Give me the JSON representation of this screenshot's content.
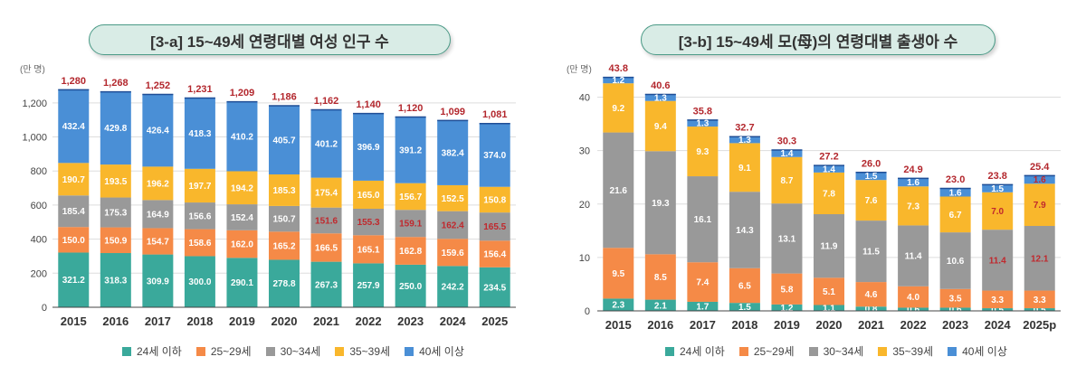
{
  "chart_data": [
    {
      "type": "bar",
      "title": "[3-a] 15~49세 연령대별 여성 인구 수",
      "ylabel": "(만 명)",
      "ylim": [
        0,
        1300
      ],
      "yticks": [
        "0",
        "200",
        "400",
        "600",
        "800",
        "1,000",
        "1,200"
      ],
      "categories": [
        "2015",
        "2016",
        "2017",
        "2018",
        "2019",
        "2020",
        "2021",
        "2022",
        "2023",
        "2024",
        "2025"
      ],
      "totals": [
        "1,280",
        "1,268",
        "1,252",
        "1,231",
        "1,209",
        "1,186",
        "1,162",
        "1,140",
        "1,120",
        "1,099",
        "1,081"
      ],
      "series": [
        {
          "name": "24세 이하",
          "color": "#3aa99b",
          "values": [
            321.2,
            318.3,
            309.9,
            300.0,
            290.1,
            278.8,
            267.3,
            257.9,
            250.0,
            242.2,
            234.5
          ],
          "labels": [
            "321.2",
            "318.3",
            "309.9",
            "300.0",
            "290.1",
            "278.8",
            "267.3",
            "257.9",
            "250.0",
            "242.2",
            "234.5"
          ]
        },
        {
          "name": "25~29세",
          "color": "#f58a47",
          "values": [
            150.0,
            150.9,
            154.7,
            158.6,
            162.0,
            165.2,
            166.5,
            165.1,
            162.8,
            159.6,
            156.4
          ],
          "labels": [
            "150.0",
            "150.9",
            "154.7",
            "158.6",
            "162.0",
            "165.2",
            "166.5",
            "165.1",
            "162.8",
            "159.6",
            "156.4"
          ]
        },
        {
          "name": "30~34세",
          "color": "#999999",
          "values": [
            185.4,
            175.3,
            164.9,
            156.6,
            152.4,
            150.7,
            151.6,
            155.3,
            159.1,
            162.4,
            165.5
          ],
          "labels": [
            "185.4",
            "175.3",
            "164.9",
            "156.6",
            "152.4",
            "150.7",
            "151.6",
            "155.3",
            "159.1",
            "162.4",
            "165.5"
          ],
          "red_from": 6
        },
        {
          "name": "35~39세",
          "color": "#f9b72c",
          "values": [
            190.7,
            193.5,
            196.2,
            197.7,
            194.2,
            185.3,
            175.4,
            165.0,
            156.7,
            152.5,
            150.8
          ],
          "labels": [
            "190.7",
            "193.5",
            "196.2",
            "197.7",
            "194.2",
            "185.3",
            "175.4",
            "165.0",
            "156.7",
            "152.5",
            "150.8"
          ]
        },
        {
          "name": "40세 이상",
          "color": "#4a8fd6",
          "values": [
            432.4,
            429.8,
            426.4,
            418.3,
            410.2,
            405.7,
            401.2,
            396.9,
            391.2,
            382.4,
            374.0
          ],
          "labels": [
            "432.4",
            "429.8",
            "426.4",
            "418.3",
            "410.2",
            "405.7",
            "401.2",
            "396.9",
            "391.2",
            "382.4",
            "374.0"
          ]
        }
      ]
    },
    {
      "type": "bar",
      "title": "[3-b] 15~49세 모(母)의 연령대별 출생아 수",
      "ylabel": "(만 명)",
      "ylim": [
        0,
        45
      ],
      "yticks": [
        "0",
        "10",
        "20",
        "30",
        "40"
      ],
      "categories": [
        "2015",
        "2016",
        "2017",
        "2018",
        "2019",
        "2020",
        "2021",
        "2022",
        "2023",
        "2024",
        "2025p"
      ],
      "totals": [
        "43.8",
        "40.6",
        "35.8",
        "32.7",
        "30.3",
        "27.2",
        "26.0",
        "24.9",
        "23.0",
        "23.8",
        "25.4"
      ],
      "series": [
        {
          "name": "24세 이하",
          "color": "#3aa99b",
          "values": [
            2.3,
            2.1,
            1.7,
            1.5,
            1.2,
            1.1,
            0.8,
            0.6,
            0.6,
            0.5,
            0.5
          ],
          "labels": [
            "2.3",
            "2.1",
            "1.7",
            "1.5",
            "1.2",
            "1.1",
            "0.8",
            "0.6",
            "0.6",
            "0.5",
            "0.5"
          ]
        },
        {
          "name": "25~29세",
          "color": "#f58a47",
          "values": [
            9.5,
            8.5,
            7.4,
            6.5,
            5.8,
            5.1,
            4.6,
            4.0,
            3.5,
            3.3,
            3.3
          ],
          "labels": [
            "9.5",
            "8.5",
            "7.4",
            "6.5",
            "5.8",
            "5.1",
            "4.6",
            "4.0",
            "3.5",
            "3.3",
            "3.3"
          ]
        },
        {
          "name": "30~34세",
          "color": "#999999",
          "values": [
            21.6,
            19.3,
            16.1,
            14.3,
            13.1,
            11.9,
            11.5,
            11.4,
            10.6,
            11.4,
            12.1
          ],
          "labels": [
            "21.6",
            "19.3",
            "16.1",
            "14.3",
            "13.1",
            "11.9",
            "11.5",
            "11.4",
            "10.6",
            "11.4",
            "12.1"
          ],
          "red_from": 9
        },
        {
          "name": "35~39세",
          "color": "#f9b72c",
          "values": [
            9.2,
            9.4,
            9.3,
            9.1,
            8.7,
            7.8,
            7.6,
            7.3,
            6.7,
            7.0,
            7.9
          ],
          "labels": [
            "9.2",
            "9.4",
            "9.3",
            "9.1",
            "8.7",
            "7.8",
            "7.6",
            "7.3",
            "6.7",
            "7.0",
            "7.9"
          ],
          "red_from": 9
        },
        {
          "name": "40세 이상",
          "color": "#4a8fd6",
          "values": [
            1.2,
            1.3,
            1.3,
            1.3,
            1.4,
            1.4,
            1.5,
            1.6,
            1.6,
            1.5,
            1.6
          ],
          "labels": [
            "1.2",
            "1.3",
            "1.3",
            "1.3",
            "1.4",
            "1.4",
            "1.5",
            "1.6",
            "1.6",
            "1.5",
            "1.6"
          ],
          "red_from": 10
        }
      ]
    }
  ]
}
